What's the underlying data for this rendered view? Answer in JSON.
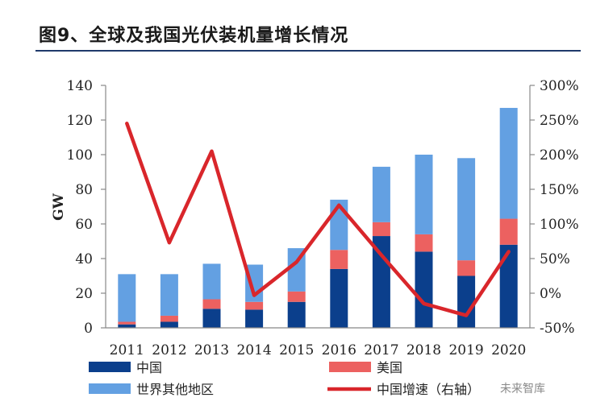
{
  "header": {
    "title": "图9、全球及我国光伏装机量增长情况"
  },
  "chart_data": {
    "type": "bar",
    "stacked": true,
    "title": "图9、全球及我国光伏装机量增长情况",
    "ylabel": "GW",
    "ylim": [
      0,
      140
    ],
    "yticks": [
      0,
      20,
      40,
      60,
      80,
      100,
      120,
      140
    ],
    "y2lim": [
      -50,
      300
    ],
    "y2ticks": [
      "-50%",
      "0%",
      "50%",
      "100%",
      "150%",
      "200%",
      "250%",
      "300%"
    ],
    "y2tick_values": [
      -50,
      0,
      50,
      100,
      150,
      200,
      250,
      300
    ],
    "categories": [
      "2011",
      "2012",
      "2013",
      "2014",
      "2015",
      "2016",
      "2017",
      "2018",
      "2019",
      "2020"
    ],
    "series": [
      {
        "name": "中国",
        "type": "bar",
        "color": "#0b3f8c",
        "values": [
          2,
          3.5,
          11,
          10.5,
          15,
          34,
          53,
          44,
          30,
          48
        ]
      },
      {
        "name": "美国",
        "type": "bar",
        "color": "#ec6160",
        "values": [
          1.5,
          3.5,
          5.5,
          4.5,
          6,
          11,
          8,
          10,
          9,
          15
        ]
      },
      {
        "name": "世界其他地区",
        "type": "bar",
        "color": "#63a0e2",
        "values": [
          27.5,
          24,
          20.5,
          21.5,
          25,
          29,
          32,
          46,
          59,
          64
        ]
      },
      {
        "name": "中国增速（右轴）",
        "type": "line",
        "axis": "right",
        "color": "#d9262b",
        "values": [
          245,
          73,
          205,
          -3,
          45,
          127,
          55,
          -15,
          -32,
          60
        ]
      }
    ],
    "legend": [
      {
        "label": "中国",
        "kind": "bar",
        "color": "#0b3f8c"
      },
      {
        "label": "美国",
        "kind": "bar",
        "color": "#ec6160"
      },
      {
        "label": "世界其他地区",
        "kind": "bar",
        "color": "#63a0e2"
      },
      {
        "label": "中国增速（右轴）",
        "kind": "line",
        "color": "#d9262b"
      }
    ],
    "legend_position": "bottom"
  },
  "watermark": {
    "text": "未来智库"
  }
}
